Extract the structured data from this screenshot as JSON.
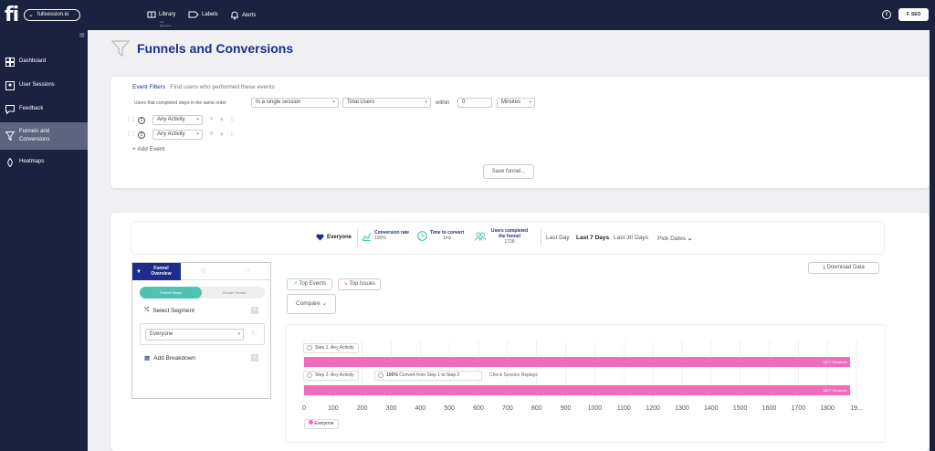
{
  "app": {
    "logo": "fi",
    "site": "fullsession.io",
    "user": "F. SEO"
  },
  "topnav": [
    {
      "label": "Library",
      "sub": "For Everyone"
    },
    {
      "label": "Labels"
    },
    {
      "label": "Alerts"
    }
  ],
  "sidebar": {
    "items": [
      {
        "label": "Dashboard",
        "icon": "dashboard-icon"
      },
      {
        "label": "User Sessions",
        "icon": "user-sessions-icon"
      },
      {
        "label": "Feedback",
        "icon": "feedback-icon"
      },
      {
        "label": "Funnels and Conversions",
        "icon": "funnel-icon",
        "active": true
      },
      {
        "label": "Heatmaps",
        "icon": "heatmap-icon"
      }
    ]
  },
  "page": {
    "title": "Funnels and Conversions"
  },
  "filters": {
    "heading": "Event Filters",
    "subheading": "Find users who performed these events",
    "order_label": "Users that completed steps in the same order",
    "session_select": "In a single session",
    "users_select": "Total Users",
    "within_label": "within",
    "within_value": "0",
    "unit_select": "Minutes",
    "events": [
      {
        "num": "1",
        "value": "Any Activity"
      },
      {
        "num": "2",
        "value": "Any Activity"
      }
    ],
    "add_event": "Add Event",
    "save_button": "Save funnel..."
  },
  "stats": {
    "segment": "Everyone",
    "conversion_label": "Conversion rate",
    "conversion_value": "100%",
    "time_label": "Time to convert",
    "time_value": "1ms",
    "completed_label": "Users completed the funnel",
    "completed_value": "1728",
    "ranges": [
      "Last Day",
      "Last 7 Days",
      "Last 30 Days"
    ],
    "active_range": "Last 7 Days",
    "pick_dates": "Pick Dates"
  },
  "panel": {
    "tab_label": "Funnel Overview",
    "toggle_on": "Funnel Steps",
    "toggle_off": "Funnel Trends",
    "select_segment": "Select Segment",
    "segment_value": "Everyone",
    "add_breakdown": "Add Breakdown"
  },
  "toolbar": {
    "top_events": "Top Events",
    "top_issues": "Top Issues",
    "compare": "Compare",
    "download": "Download Data"
  },
  "chart_data": {
    "type": "bar",
    "orientation": "horizontal",
    "categories": [
      "Step 1: Any Activity",
      "Step 2: Any Activity"
    ],
    "series": [
      {
        "name": "Everyone",
        "values": [
          1877,
          1877
        ]
      }
    ],
    "bar_labels": [
      "1877 Sessions",
      "1877 Sessions"
    ],
    "xlim": [
      0,
      1900
    ],
    "xticks": [
      "0",
      "100",
      "200",
      "300",
      "400",
      "500",
      "600",
      "700",
      "800",
      "900",
      "1000",
      "1100",
      "1200",
      "1300",
      "1400",
      "1500",
      "1600",
      "1700",
      "1800",
      "19..."
    ],
    "convert_pct": "100%",
    "convert_text": "Convert from Step 1 to Step 2",
    "replay_link": "Check Session Replays",
    "color": "#f06cbd"
  }
}
